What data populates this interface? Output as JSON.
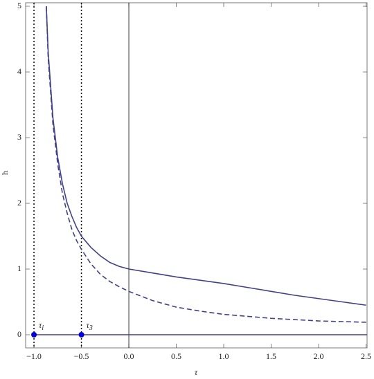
{
  "chart_data": {
    "type": "line",
    "x_label": "τ",
    "y_label": "h",
    "x": [
      -0.87,
      -0.85,
      -0.8,
      -0.75,
      -0.7,
      -0.65,
      -0.6,
      -0.55,
      -0.5,
      -0.4,
      -0.3,
      -0.2,
      -0.1,
      0,
      0.25,
      0.5,
      0.75,
      1,
      1.25,
      1.5,
      1.75,
      2,
      2.25,
      2.5
    ],
    "series": [
      {
        "color": "#3f3f96",
        "dash": "solid",
        "values": [
          5,
          4.3,
          3.3,
          2.7,
          2.3,
          2.0,
          1.8,
          1.63,
          1.5,
          1.33,
          1.2,
          1.1,
          1.04,
          1.0,
          0.94,
          0.88,
          0.83,
          0.78,
          0.72,
          0.66,
          0.6,
          0.55,
          0.5,
          0.45
        ]
      },
      {
        "color": "#3f3f96",
        "dash": "dashed",
        "values": [
          5,
          4.2,
          3.2,
          2.6,
          2.15,
          1.85,
          1.6,
          1.43,
          1.3,
          1.08,
          0.92,
          0.81,
          0.73,
          0.66,
          0.52,
          0.42,
          0.36,
          0.31,
          0.28,
          0.25,
          0.23,
          0.21,
          0.2,
          0.19
        ]
      }
    ],
    "hline": {
      "y": 0,
      "x_from": -1,
      "color": "#3f3f96"
    },
    "axis_x": 0,
    "vlines": [
      -1,
      -0.5
    ],
    "points": [
      {
        "x": -1,
        "y": 0,
        "label": "τ",
        "sub": "i",
        "color": "#0000ee"
      },
      {
        "x": -0.5,
        "y": 0,
        "label": "τ",
        "sub": "3",
        "color": "#0000ee"
      }
    ],
    "xlim": [
      -1.088,
      2.511
    ],
    "ylim": [
      -0.2,
      5.053
    ],
    "xticks": [
      {
        "value": -1,
        "label": "−1.0"
      },
      {
        "value": -0.5,
        "label": "−0.5"
      },
      {
        "value": 0,
        "label": "0.0"
      },
      {
        "value": 0.5,
        "label": "0.5"
      },
      {
        "value": 1,
        "label": "1.0"
      },
      {
        "value": 1.5,
        "label": "1.5"
      },
      {
        "value": 2,
        "label": "2.0"
      },
      {
        "value": 2.5,
        "label": "2.5"
      }
    ],
    "yticks": [
      0,
      1,
      2,
      3,
      4,
      5
    ]
  }
}
